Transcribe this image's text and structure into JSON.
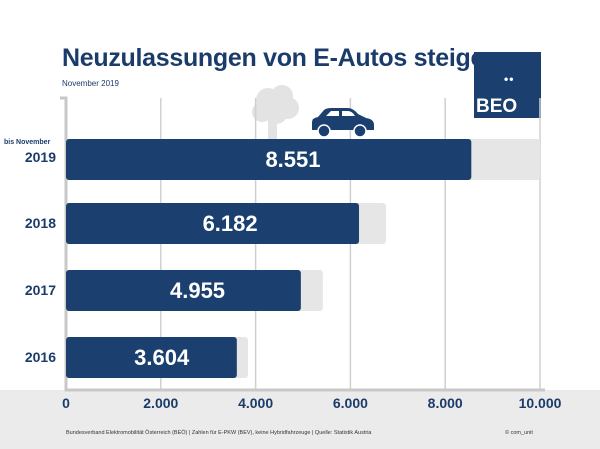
{
  "header": {
    "title": "Neuzulassungen von E-Autos steigen",
    "subtitle": "November 2019",
    "logo_text": "BEO",
    "logo_dots": "••"
  },
  "footer": {
    "source": "Bundesverband Elektromobilität Österreich (BEÖ) | Zahlen für E-PKW (BEV), keine Hybridfahrzeuge | Quelle: Statistik Austria",
    "copyright": "© com_unit"
  },
  "colors": {
    "bar": "#1b3f6e",
    "background_bar": "#e6e6e6",
    "text": "#1b3c6b",
    "grid": "#d0d0d0"
  },
  "icons": [
    "car-icon",
    "tree-icon"
  ],
  "chart_data": {
    "type": "bar",
    "orientation": "horizontal",
    "title": "Neuzulassungen von E-Autos steigen",
    "subtitle": "November 2019",
    "categories": [
      "2019",
      "2018",
      "2017",
      "2016"
    ],
    "category_note": "bis November",
    "values": [
      8551,
      6182,
      4955,
      3604
    ],
    "value_labels": [
      "8.551",
      "6.182",
      "4.955",
      "3.604"
    ],
    "background_values": [
      10000,
      6750,
      5420,
      3840
    ],
    "xlim": [
      0,
      10000
    ],
    "xticks": [
      0,
      2000,
      4000,
      6000,
      8000,
      10000
    ],
    "xtick_labels": [
      "0",
      "2.000",
      "4.000",
      "6.000",
      "8.000",
      "10.000"
    ],
    "grid": "vertical",
    "legend": "none"
  }
}
